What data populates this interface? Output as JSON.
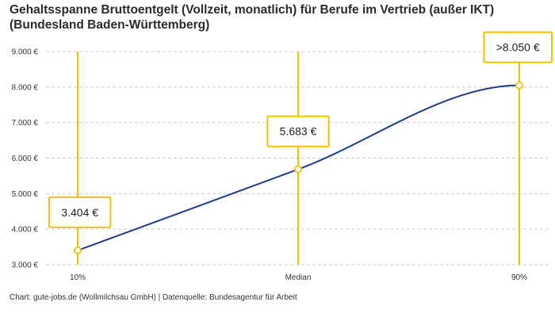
{
  "title_lines": [
    "Gehaltsspanne Bruttoentgelt (Vollzeit, monatlich) für Berufe im Vertrieb (außer IKT)",
    "(Bundesland Baden-Württemberg)"
  ],
  "source": "Chart: gute-jobs.de (Wollmilchsau GmbH) | Datenquelle: Bundesagentur für Arbeit",
  "colors": {
    "line": "#1f3a93",
    "accent": "#f5c000",
    "grid": "#cccccc",
    "marker_fill": "#ffffff"
  },
  "chart_data": {
    "type": "line",
    "categories": [
      "10%",
      "Median",
      "90%"
    ],
    "values": [
      3404,
      5683,
      8050
    ],
    "data_labels": [
      "3.404 €",
      "5.683 €",
      ">8.050 €"
    ],
    "ylim": [
      3000,
      9000
    ],
    "yticks": [
      3000,
      4000,
      5000,
      6000,
      7000,
      8000,
      9000
    ],
    "ytick_labels": [
      "3.000 €",
      "4.000 €",
      "5.000 €",
      "6.000 €",
      "7.000 €",
      "8.000 €",
      "9.000 €"
    ],
    "grid": true,
    "title": "Gehaltsspanne Bruttoentgelt (Vollzeit, monatlich) für Berufe im Vertrieb (außer IKT) (Bundesland Baden-Württemberg)"
  }
}
